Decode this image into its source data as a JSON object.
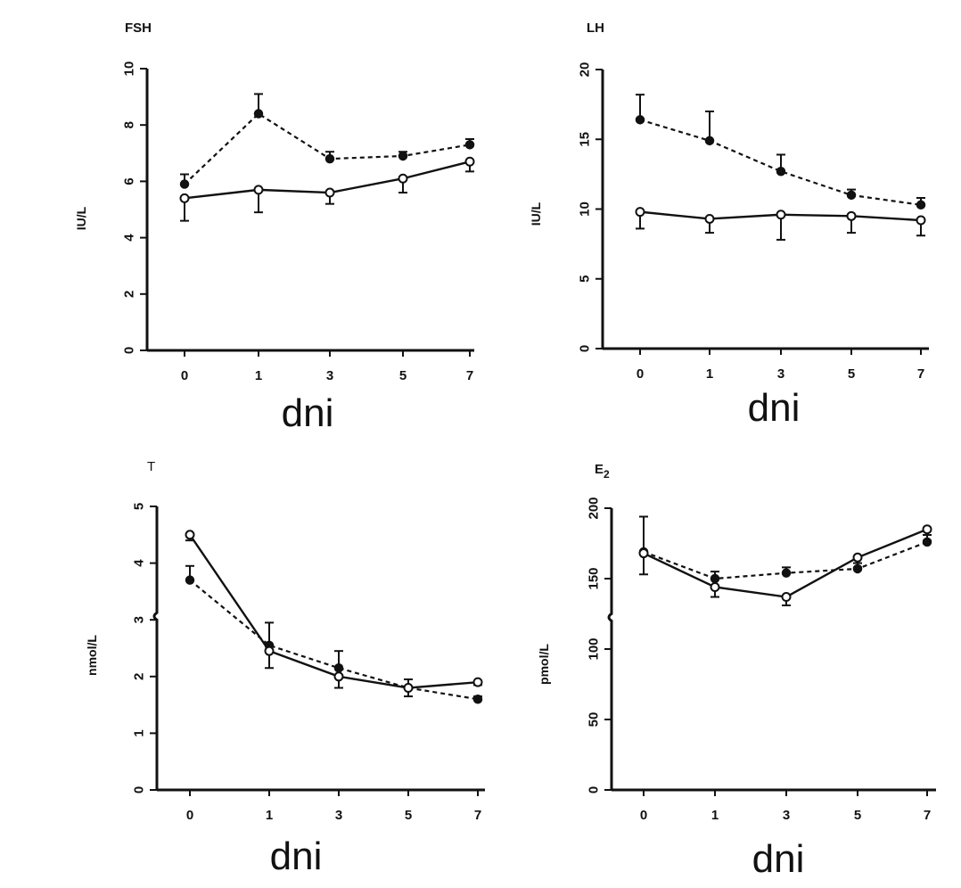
{
  "colors": {
    "ink": "#111111",
    "background": "#ffffff"
  },
  "chart_data": [
    {
      "type": "line",
      "title": "FSH",
      "ylabel": "IU/L",
      "xlabel": "dni",
      "categories": [
        "0",
        "1",
        "3",
        "5",
        "7"
      ],
      "x": [
        0,
        1,
        3,
        5,
        7
      ],
      "ylim": [
        0,
        10
      ],
      "yticks": [
        "0",
        "2",
        "4",
        "6",
        "8",
        "10"
      ],
      "grid": false,
      "series": [
        {
          "style": "dashed",
          "marker": "filled",
          "values": [
            5.9,
            8.4,
            6.8,
            6.9,
            7.3
          ],
          "errors": [
            0.35,
            0.7,
            0.25,
            0.15,
            0.2
          ]
        },
        {
          "style": "solid",
          "marker": "open",
          "values": [
            5.4,
            5.7,
            5.6,
            6.1,
            6.7
          ],
          "errors": [
            0.8,
            0.8,
            0.4,
            0.5,
            0.35
          ]
        }
      ]
    },
    {
      "type": "line",
      "title": "LH",
      "ylabel": "IU/L",
      "xlabel": "dni",
      "categories": [
        "0",
        "1",
        "3",
        "5",
        "7"
      ],
      "x": [
        0,
        1,
        3,
        5,
        7
      ],
      "ylim": [
        0,
        20
      ],
      "yticks": [
        "0",
        "5",
        "10",
        "15",
        "20"
      ],
      "grid": false,
      "series": [
        {
          "style": "dashed",
          "marker": "filled",
          "values": [
            16.4,
            14.9,
            12.7,
            11.0,
            10.3
          ],
          "errors": [
            1.8,
            2.1,
            1.2,
            0.4,
            0.5
          ]
        },
        {
          "style": "solid",
          "marker": "open",
          "values": [
            9.8,
            9.3,
            9.6,
            9.5,
            9.2
          ],
          "errors": [
            1.2,
            1.0,
            1.8,
            1.2,
            1.1
          ]
        }
      ]
    },
    {
      "type": "line",
      "title": "T",
      "ylabel": "nmol/L",
      "xlabel": "dni",
      "categories": [
        "0",
        "1",
        "3",
        "5",
        "7"
      ],
      "x": [
        0,
        1,
        3,
        5,
        7
      ],
      "ylim": [
        0,
        5
      ],
      "yticks": [
        "0",
        "1",
        "2",
        "3",
        "4",
        "5"
      ],
      "grid": false,
      "series": [
        {
          "style": "dashed",
          "marker": "filled",
          "values": [
            3.7,
            2.55,
            2.15,
            1.8,
            1.6
          ],
          "errors": [
            0.25,
            0.4,
            0.3,
            0.15,
            0.05
          ]
        },
        {
          "style": "solid",
          "marker": "open",
          "values": [
            4.5,
            2.45,
            2.0,
            1.8,
            1.9
          ],
          "errors": [
            0.1,
            0.3,
            0.2,
            0.15,
            0.05
          ]
        }
      ]
    },
    {
      "type": "line",
      "title": "E",
      "title_sub": "2",
      "ylabel": "pmol/L",
      "xlabel": "dni",
      "categories": [
        "0",
        "1",
        "3",
        "5",
        "7"
      ],
      "x": [
        0,
        1,
        3,
        5,
        7
      ],
      "ylim": [
        0,
        200
      ],
      "yticks": [
        "0",
        "50",
        "100",
        "150",
        "200"
      ],
      "grid": false,
      "series": [
        {
          "style": "dashed",
          "marker": "filled",
          "values": [
            169,
            150,
            154,
            157,
            176
          ],
          "errors": [
            25,
            5,
            4,
            4,
            5
          ]
        },
        {
          "style": "solid",
          "marker": "open",
          "values": [
            168,
            144,
            137,
            165,
            185
          ],
          "errors": [
            15,
            7,
            6,
            7,
            8
          ]
        }
      ]
    }
  ]
}
